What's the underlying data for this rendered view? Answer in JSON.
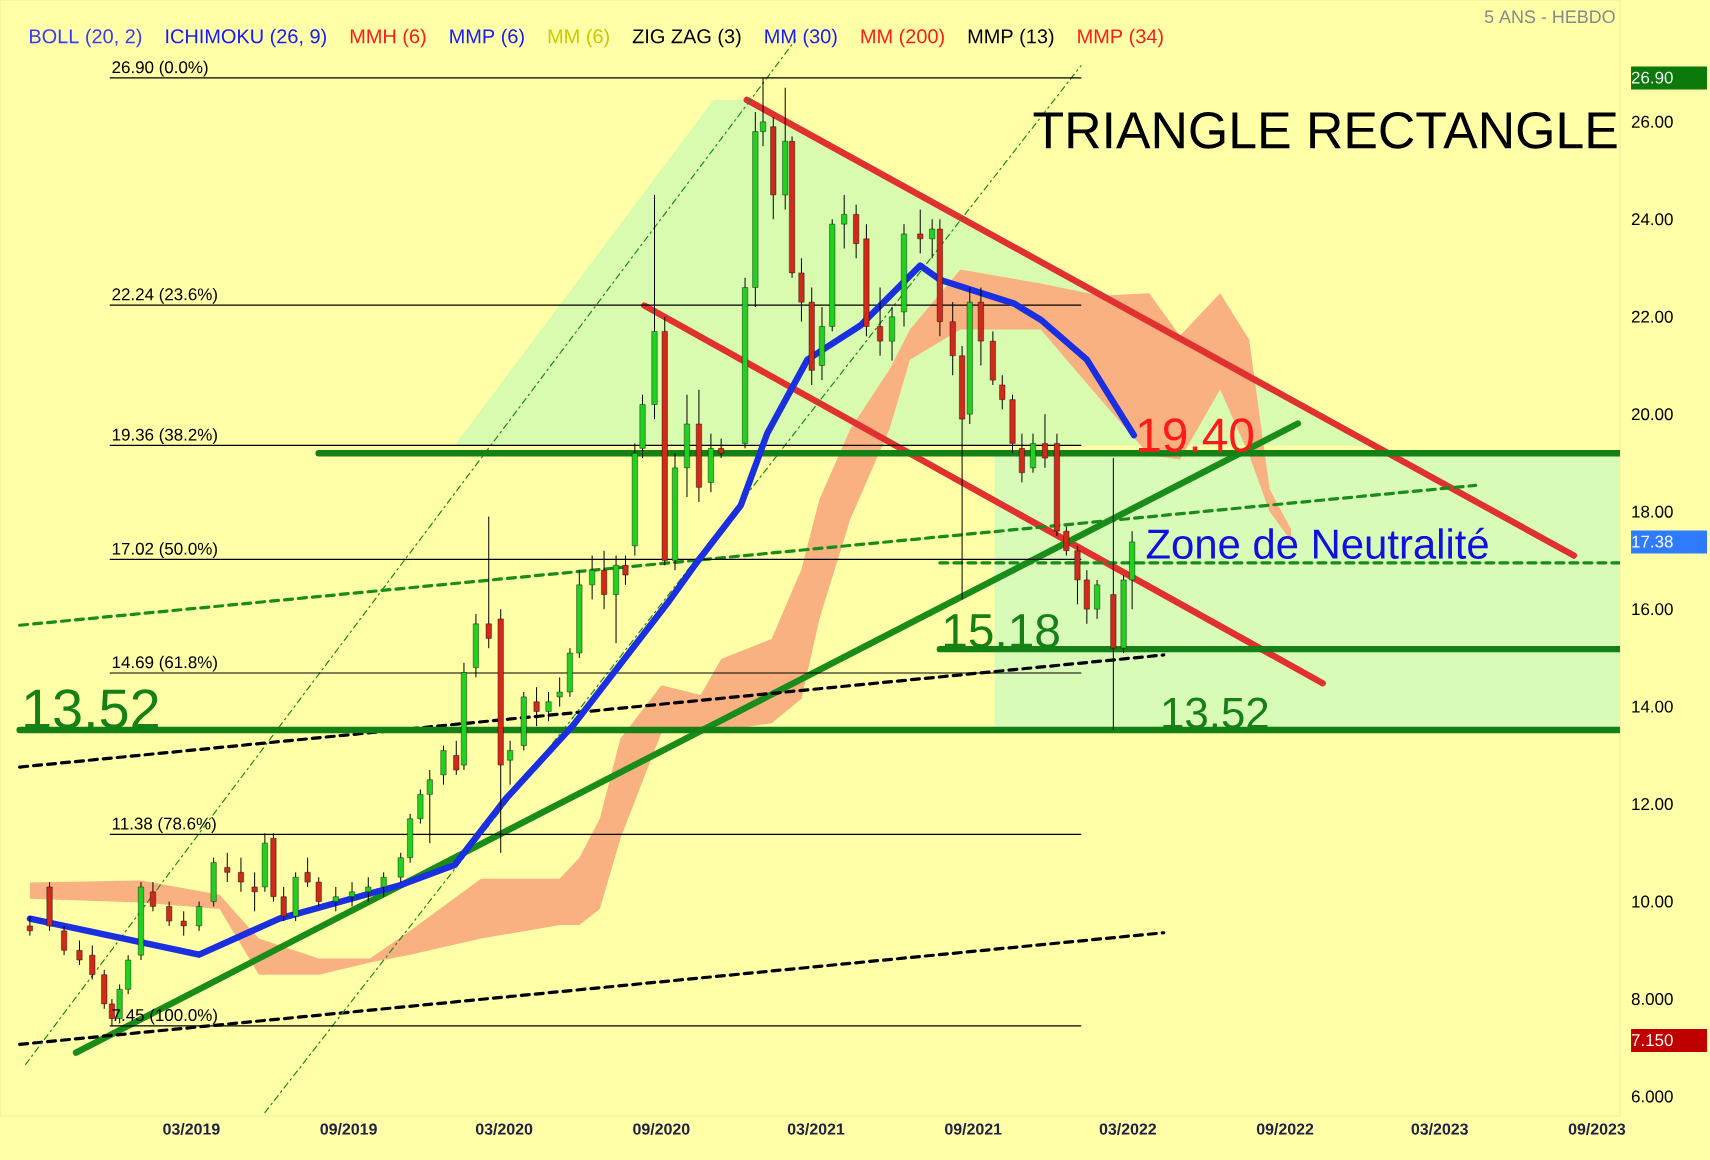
{
  "chart_data": {
    "type": "candlestick",
    "subtitle": "5 ANS - HEBDO",
    "xlim": [
      "2018-07-20",
      "2023-09-28"
    ],
    "ylim": [
      5.6,
      28.5
    ],
    "xticks": [
      {
        "value": "2019-03-01",
        "label": "03/2019"
      },
      {
        "value": "2019-09-01",
        "label": "09/2019"
      },
      {
        "value": "2020-03-01",
        "label": "03/2020"
      },
      {
        "value": "2020-09-01",
        "label": "09/2020"
      },
      {
        "value": "2021-03-01",
        "label": "03/2021"
      },
      {
        "value": "2021-09-01",
        "label": "09/2021"
      },
      {
        "value": "2022-03-01",
        "label": "03/2022"
      },
      {
        "value": "2022-09-01",
        "label": "09/2022"
      },
      {
        "value": "2023-03-01",
        "label": "03/2023"
      },
      {
        "value": "2023-09-01",
        "label": "09/2023"
      }
    ],
    "yticks": [
      {
        "value": 6,
        "label": "6.000"
      },
      {
        "value": 7.15,
        "label": "7.150"
      },
      {
        "value": 8,
        "label": "8.000"
      },
      {
        "value": 10,
        "label": "10.00"
      },
      {
        "value": 12,
        "label": "12.00"
      },
      {
        "value": 14,
        "label": "14.00"
      },
      {
        "value": 16,
        "label": "16.00"
      },
      {
        "value": 17.38,
        "label": "17.38"
      },
      {
        "value": 18,
        "label": "18.00"
      },
      {
        "value": 20,
        "label": "20.00"
      },
      {
        "value": 22,
        "label": "22.00"
      },
      {
        "value": 24,
        "label": "24.00"
      },
      {
        "value": 26,
        "label": "26.00"
      },
      {
        "value": 26.9,
        "label": "26.90"
      }
    ],
    "x": [
      "2018-08-24",
      "2018-09-16",
      "2018-10-03",
      "2018-10-21",
      "2018-11-05",
      "2018-11-19",
      "2018-11-28",
      "2018-12-07",
      "2018-12-17",
      "2019-01-01",
      "2019-01-15",
      "2019-02-03",
      "2019-02-20",
      "2019-03-10",
      "2019-03-27",
      "2019-04-12",
      "2019-04-28",
      "2019-05-14",
      "2019-05-26",
      "2019-06-05",
      "2019-06-17",
      "2019-07-01",
      "2019-07-15",
      "2019-07-28",
      "2019-08-17",
      "2019-09-05",
      "2019-09-24",
      "2019-10-12",
      "2019-11-01",
      "2019-11-12",
      "2019-11-24",
      "2019-12-05",
      "2019-12-21",
      "2020-01-05",
      "2020-01-14",
      "2020-01-28",
      "2020-02-12",
      "2020-02-26",
      "2020-03-08",
      "2020-03-24",
      "2020-04-08",
      "2020-04-22",
      "2020-05-05",
      "2020-05-17",
      "2020-05-28",
      "2020-06-12",
      "2020-06-26",
      "2020-07-10",
      "2020-07-21",
      "2020-08-01",
      "2020-08-10",
      "2020-08-24",
      "2020-09-05",
      "2020-09-17",
      "2020-10-01",
      "2020-10-15",
      "2020-10-29",
      "2020-11-10",
      "2020-12-08",
      "2020-12-20",
      "2020-12-29",
      "2021-01-10",
      "2021-01-24",
      "2021-02-01",
      "2021-02-12",
      "2021-02-24",
      "2021-03-08",
      "2021-03-20",
      "2021-04-03",
      "2021-04-17",
      "2021-04-29",
      "2021-05-15",
      "2021-05-29",
      "2021-06-12",
      "2021-07-01",
      "2021-07-15",
      "2021-07-24",
      "2021-08-08",
      "2021-08-19",
      "2021-08-28",
      "2021-09-10",
      "2021-09-24",
      "2021-10-05",
      "2021-10-17",
      "2021-10-28",
      "2021-11-10",
      "2021-11-24",
      "2021-12-08",
      "2021-12-19",
      "2022-01-01",
      "2022-01-12",
      "2022-01-24",
      "2022-02-12",
      "2022-02-24",
      "2022-03-06"
    ],
    "ohlc": [
      [
        9.5,
        9.7,
        9.3,
        9.4
      ],
      [
        10.3,
        10.4,
        9.4,
        9.5
      ],
      [
        9.4,
        9.5,
        8.9,
        9.0
      ],
      [
        9.0,
        9.2,
        8.7,
        8.8
      ],
      [
        8.9,
        9.1,
        8.4,
        8.5
      ],
      [
        8.5,
        8.6,
        7.8,
        7.9
      ],
      [
        7.9,
        8.0,
        7.45,
        7.6
      ],
      [
        7.6,
        8.3,
        7.5,
        8.2
      ],
      [
        8.2,
        8.9,
        8.1,
        8.8
      ],
      [
        8.9,
        10.4,
        8.8,
        10.3
      ],
      [
        10.2,
        10.4,
        9.8,
        9.9
      ],
      [
        9.9,
        10.0,
        9.5,
        9.6
      ],
      [
        9.6,
        9.8,
        9.3,
        9.5
      ],
      [
        9.5,
        10.0,
        9.4,
        9.9
      ],
      [
        10.0,
        10.9,
        9.9,
        10.8
      ],
      [
        10.7,
        11.0,
        10.4,
        10.6
      ],
      [
        10.6,
        10.9,
        10.2,
        10.4
      ],
      [
        10.3,
        10.6,
        9.8,
        10.2
      ],
      [
        10.3,
        11.4,
        10.2,
        11.2
      ],
      [
        11.3,
        11.4,
        10.0,
        10.1
      ],
      [
        10.1,
        10.3,
        9.6,
        9.7
      ],
      [
        9.7,
        10.6,
        9.6,
        10.5
      ],
      [
        10.6,
        10.9,
        10.3,
        10.4
      ],
      [
        10.4,
        10.5,
        9.9,
        10.0
      ],
      [
        10.0,
        10.3,
        9.8,
        10.1
      ],
      [
        10.1,
        10.4,
        9.9,
        10.2
      ],
      [
        10.2,
        10.5,
        10.0,
        10.3
      ],
      [
        10.3,
        10.6,
        10.1,
        10.5
      ],
      [
        10.5,
        11.0,
        10.4,
        10.9
      ],
      [
        10.9,
        11.8,
        10.8,
        11.7
      ],
      [
        11.7,
        12.3,
        11.6,
        12.2
      ],
      [
        12.2,
        12.7,
        11.2,
        12.5
      ],
      [
        12.6,
        13.2,
        12.4,
        13.1
      ],
      [
        13.0,
        13.3,
        12.6,
        12.7
      ],
      [
        12.8,
        14.9,
        12.7,
        14.7
      ],
      [
        14.8,
        15.9,
        14.6,
        15.7
      ],
      [
        15.7,
        17.9,
        15.2,
        15.4
      ],
      [
        15.8,
        16.0,
        11.0,
        12.8
      ],
      [
        12.9,
        13.3,
        12.4,
        13.1
      ],
      [
        13.2,
        14.3,
        13.1,
        14.2
      ],
      [
        14.1,
        14.4,
        13.6,
        13.9
      ],
      [
        13.9,
        14.3,
        13.7,
        14.1
      ],
      [
        14.2,
        14.6,
        14.0,
        14.3
      ],
      [
        14.3,
        15.2,
        14.2,
        15.1
      ],
      [
        15.1,
        16.8,
        15.0,
        16.5
      ],
      [
        16.5,
        17.1,
        16.2,
        16.8
      ],
      [
        16.8,
        17.2,
        16.0,
        16.3
      ],
      [
        16.3,
        17.1,
        15.3,
        16.9
      ],
      [
        16.9,
        17.1,
        16.5,
        16.7
      ],
      [
        17.3,
        19.4,
        17.1,
        19.2
      ],
      [
        19.3,
        20.4,
        19.1,
        20.2
      ],
      [
        20.2,
        24.5,
        19.9,
        21.7
      ],
      [
        21.7,
        22.0,
        16.9,
        17.0
      ],
      [
        17.0,
        19.2,
        16.8,
        18.9
      ],
      [
        18.9,
        20.4,
        18.3,
        19.8
      ],
      [
        19.8,
        20.5,
        18.2,
        18.5
      ],
      [
        18.6,
        19.6,
        18.4,
        19.3
      ],
      [
        19.3,
        19.5,
        19.1,
        19.2
      ],
      [
        19.4,
        22.8,
        19.3,
        22.6
      ],
      [
        22.6,
        26.2,
        22.2,
        25.8
      ],
      [
        25.8,
        26.9,
        25.5,
        26.0
      ],
      [
        25.9,
        26.1,
        24.0,
        24.5
      ],
      [
        24.5,
        26.7,
        24.2,
        25.6
      ],
      [
        25.6,
        25.7,
        22.8,
        22.9
      ],
      [
        22.9,
        23.2,
        21.9,
        22.3
      ],
      [
        22.3,
        22.6,
        20.6,
        20.9
      ],
      [
        21.0,
        22.2,
        20.7,
        21.8
      ],
      [
        21.8,
        24.0,
        21.7,
        23.9
      ],
      [
        23.9,
        24.5,
        23.4,
        24.1
      ],
      [
        24.1,
        24.3,
        23.2,
        23.5
      ],
      [
        23.6,
        23.9,
        21.6,
        21.8
      ],
      [
        21.8,
        22.6,
        21.2,
        21.5
      ],
      [
        21.5,
        22.2,
        21.1,
        22.0
      ],
      [
        22.1,
        23.9,
        21.8,
        23.7
      ],
      [
        23.7,
        24.2,
        23.3,
        23.6
      ],
      [
        23.6,
        24.0,
        23.2,
        23.8
      ],
      [
        23.8,
        24.0,
        21.6,
        21.9
      ],
      [
        21.9,
        22.3,
        20.8,
        21.2
      ],
      [
        21.2,
        21.4,
        16.2,
        19.9
      ],
      [
        20.0,
        22.6,
        19.8,
        22.3
      ],
      [
        22.3,
        22.6,
        21.0,
        21.5
      ],
      [
        21.5,
        21.7,
        20.6,
        20.7
      ],
      [
        20.6,
        20.8,
        20.1,
        20.3
      ],
      [
        20.3,
        20.4,
        19.2,
        19.4
      ],
      [
        19.3,
        19.6,
        18.6,
        18.8
      ],
      [
        18.9,
        19.6,
        18.8,
        19.4
      ],
      [
        19.4,
        20.0,
        18.9,
        19.1
      ],
      [
        19.4,
        19.6,
        17.5,
        17.6
      ],
      [
        17.6,
        17.7,
        17.1,
        17.2
      ],
      [
        17.2,
        17.3,
        16.1,
        16.6
      ],
      [
        16.6,
        16.8,
        15.7,
        16.0
      ],
      [
        16.0,
        16.6,
        15.8,
        16.5
      ],
      [
        16.3,
        19.1,
        13.52,
        15.2
      ],
      [
        15.2,
        16.7,
        15.1,
        16.6
      ],
      [
        16.6,
        17.6,
        16.0,
        17.38
      ]
    ],
    "series": [
      {
        "type": "area",
        "color": "#d8fbb0",
        "x": [
          "2020-01-03",
          "2020-11-01",
          "2020-12-10",
          "2022-12-07"
        ],
        "values": [
          null,
          null,
          null,
          null
        ],
        "upper": [
          19.36,
          26.45,
          26.45,
          19.36
        ],
        "lower": [
          19.36,
          19.36,
          19.36,
          19.36
        ]
      },
      {
        "type": "area",
        "color": "#d8fbb8",
        "x": [
          "2021-09-26",
          "2023-09-28"
        ],
        "values": [
          null,
          null
        ],
        "upper": [
          19.2,
          19.2
        ],
        "lower": [
          13.52,
          13.52
        ]
      },
      {
        "type": "area",
        "color": "#f9b182",
        "x": [
          "2018-08-24",
          "2019-01-01",
          "2019-04-03",
          "2019-05-19",
          "2019-07-28",
          "2019-09-26",
          "2019-11-12",
          "2020-02-03",
          "2020-05-05",
          "2020-05-28",
          "2020-06-21",
          "2020-07-15",
          "2020-09-01",
          "2020-10-17",
          "2020-11-10",
          "2021-01-08",
          "2021-02-12",
          "2021-03-05",
          "2021-04-10",
          "2021-05-26",
          "2021-06-19",
          "2021-08-17",
          "2021-11-19",
          "2022-01-28",
          "2022-03-26",
          "2022-05-01",
          "2022-06-17",
          "2022-07-21",
          "2022-08-14",
          "2022-09-08"
        ],
        "values": [
          null,
          null,
          null,
          null,
          null,
          null,
          null,
          null,
          null,
          null,
          null,
          null,
          null,
          null,
          null,
          null,
          null,
          null,
          null,
          null,
          null,
          null,
          null,
          null,
          null,
          null,
          null,
          null,
          null,
          null
        ],
        "upper": [
          10.39,
          10.43,
          10.14,
          9.24,
          8.83,
          8.83,
          9.4,
          10.47,
          10.47,
          10.9,
          11.7,
          13.34,
          14.44,
          14.24,
          14.98,
          15.39,
          16.82,
          18.25,
          19.69,
          20.92,
          21.74,
          22.97,
          22.68,
          22.43,
          22.48,
          21.61,
          22.48,
          21.53,
          18.46,
          17.64
        ],
        "lower": [
          10.06,
          9.98,
          9.85,
          8.5,
          8.5,
          8.75,
          8.91,
          9.24,
          9.52,
          9.52,
          9.85,
          11.29,
          13.46,
          13.5,
          13.5,
          13.66,
          14.16,
          15.8,
          17.84,
          19.69,
          21.12,
          21.74,
          21.74,
          20.3,
          19.16,
          19.07,
          20.51,
          19.16,
          18.0,
          17.4
        ]
      },
      {
        "type": "line",
        "color": "#e03030",
        "x": [
          "2020-12-10",
          "2023-08-05"
        ],
        "values": [
          26.45,
          17.1
        ]
      },
      {
        "type": "line",
        "color": "#e03030",
        "x": [
          "2020-08-12",
          "2022-10-15"
        ],
        "values": [
          22.23,
          14.48
        ]
      },
      {
        "type": "line",
        "color": "#1a8c1a",
        "x": [
          "2018-10-17",
          "2022-09-16"
        ],
        "values": [
          6.9,
          19.81
        ]
      },
      {
        "type": "line",
        "color": "#1a8c1a",
        "line_style": "dashed",
        "x": [
          "2018-08-12",
          "2023-04-12"
        ],
        "values": [
          15.67,
          18.54
        ]
      },
      {
        "type": "line",
        "color": "#000000",
        "line_style": "dashed",
        "x": [
          "2018-08-12",
          "2022-04-12"
        ],
        "values": [
          12.76,
          15.06
        ]
      },
      {
        "type": "line",
        "color": "#000000",
        "line_style": "dashed",
        "x": [
          "2018-08-12",
          "2022-04-12"
        ],
        "values": [
          7.07,
          9.36
        ]
      },
      {
        "type": "line",
        "color": "#1a8c1a",
        "line_style": "dotted",
        "x": [
          "2018-08-19",
          "2021-02-05"
        ],
        "values": [
          6.66,
          27.68
        ]
      },
      {
        "type": "line",
        "color": "#1a8c1a",
        "line_style": "dotted",
        "x": [
          "2019-05-26",
          "2022-01-05"
        ],
        "values": [
          5.67,
          27.15
        ]
      },
      {
        "type": "line",
        "color": "#000000",
        "x": [
          "2018-11-26",
          "2022-01-05"
        ],
        "values": [
          26.9,
          26.9
        ]
      },
      {
        "type": "line",
        "color": "#000000",
        "x": [
          "2018-11-26",
          "2022-01-05"
        ],
        "values": [
          22.24,
          22.24
        ]
      },
      {
        "type": "line",
        "color": "#000000",
        "x": [
          "2018-11-26",
          "2022-01-05"
        ],
        "values": [
          19.36,
          19.36
        ]
      },
      {
        "type": "line",
        "color": "#000000",
        "x": [
          "2018-11-26",
          "2022-01-05"
        ],
        "values": [
          17.02,
          17.02
        ]
      },
      {
        "type": "line",
        "color": "#000000",
        "x": [
          "2018-11-26",
          "2022-01-05"
        ],
        "values": [
          14.69,
          14.69
        ]
      },
      {
        "type": "line",
        "color": "#000000",
        "x": [
          "2018-11-26",
          "2022-01-05"
        ],
        "values": [
          11.38,
          11.38
        ]
      },
      {
        "type": "line",
        "color": "#000000",
        "x": [
          "2018-11-26",
          "2022-01-05"
        ],
        "values": [
          7.45,
          7.45
        ]
      },
      {
        "type": "line",
        "color": "#158015",
        "x": [
          "2019-07-28",
          "2023-09-28"
        ],
        "values": [
          19.2,
          19.2
        ]
      },
      {
        "type": "line",
        "color": "#158015",
        "x": [
          "2018-08-12",
          "2023-09-28"
        ],
        "values": [
          13.52,
          13.52
        ]
      },
      {
        "type": "line",
        "color": "#158015",
        "x": [
          "2021-07-24",
          "2023-09-28"
        ],
        "values": [
          15.18,
          15.18
        ]
      },
      {
        "type": "line",
        "color": "#1a8c1a",
        "line_style": "dashed",
        "x": [
          "2021-07-24",
          "2023-09-28"
        ],
        "values": [
          16.95,
          16.95
        ]
      },
      {
        "type": "line",
        "color": "#1a2fe0",
        "x": [
          "2018-08-24",
          "2019-03-10",
          "2019-06-12",
          "2019-11-01",
          "2020-01-03",
          "2020-03-03",
          "2020-05-21",
          "2020-09-08",
          "2020-10-10",
          "2020-12-03",
          "2021-01-03",
          "2021-02-19",
          "2021-04-22",
          "2021-07-01",
          "2021-07-24",
          "2021-10-19",
          "2021-11-19",
          "2022-01-12",
          "2022-03-08"
        ],
        "values": [
          9.65,
          8.91,
          9.65,
          10.34,
          10.75,
          12.11,
          13.62,
          16.12,
          16.9,
          18.13,
          19.61,
          21.12,
          21.82,
          23.05,
          22.76,
          22.27,
          21.94,
          21.12,
          19.57
        ]
      }
    ],
    "annotations": [
      "BOLL (20, 2)",
      "ICHIMOKU (26, 9)",
      "MMH (6)",
      "MMP (6)",
      "MM (6)",
      "ZIG ZAG (3)",
      "MM (30)",
      "MM (200)",
      "MMP (13)",
      "MMP (34)",
      "TRIANGLE RECTANGLE",
      {
        "text": "19.40",
        "x": "2022-03-08",
        "y": 19.57
      },
      {
        "text": "Zone de Neutralité",
        "x": "2022-03-20",
        "y": 17.35
      },
      {
        "text": "15.18",
        "x": "2021-07-24",
        "y": 15.18
      },
      {
        "text": "13.52",
        "x": "2018-08-12",
        "y": 13.52
      },
      {
        "text": "13.52",
        "x": "2022-04-06",
        "y": 13.52
      },
      {
        "text": "26.90 (0.0%)",
        "x": "2018-11-26",
        "y": 26.9
      },
      {
        "text": "22.24 (23.6%)",
        "x": "2018-11-26",
        "y": 22.24
      },
      {
        "text": "19.36 (38.2%)",
        "x": "2018-11-26",
        "y": 19.36
      },
      {
        "text": "17.02 (50.0%)",
        "x": "2018-11-26",
        "y": 17.02
      },
      {
        "text": "14.69 (61.8%)",
        "x": "2018-11-26",
        "y": 14.69
      },
      {
        "text": "11.38 (78.6%)",
        "x": "2018-11-26",
        "y": 11.38
      },
      {
        "text": "7.45 (100.0%)",
        "x": "2018-11-26",
        "y": 7.45
      }
    ]
  }
}
